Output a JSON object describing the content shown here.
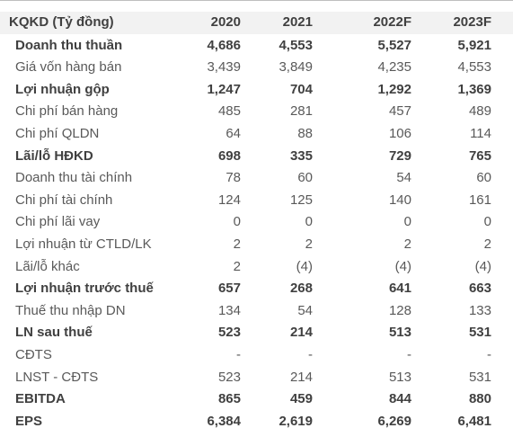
{
  "header": {
    "label": "KQKD (Tỷ đồng)",
    "years": [
      "2020",
      "2021",
      "2022F",
      "2023F"
    ]
  },
  "rows": [
    {
      "label": "Doanh thu thuần",
      "bold": true,
      "values": [
        "4,686",
        "4,553",
        "5,527",
        "5,921"
      ]
    },
    {
      "label": "Giá vốn hàng bán",
      "bold": false,
      "values": [
        "3,439",
        "3,849",
        "4,235",
        "4,553"
      ]
    },
    {
      "label": "Lợi nhuận gộp",
      "bold": true,
      "values": [
        "1,247",
        "704",
        "1,292",
        "1,369"
      ]
    },
    {
      "label": "Chi phí bán hàng",
      "bold": false,
      "values": [
        "485",
        "281",
        "457",
        "489"
      ]
    },
    {
      "label": "Chi phí QLDN",
      "bold": false,
      "values": [
        "64",
        "88",
        "106",
        "114"
      ]
    },
    {
      "label": "Lãi/lỗ HĐKD",
      "bold": true,
      "values": [
        "698",
        "335",
        "729",
        "765"
      ]
    },
    {
      "label": "Doanh thu tài chính",
      "bold": false,
      "values": [
        "78",
        "60",
        "54",
        "60"
      ]
    },
    {
      "label": "Chi phí tài chính",
      "bold": false,
      "values": [
        "124",
        "125",
        "140",
        "161"
      ]
    },
    {
      "label": "Chi phí lãi vay",
      "bold": false,
      "values": [
        "0",
        "0",
        "0",
        "0"
      ]
    },
    {
      "label": "Lợi nhuận từ CTLD/LK",
      "bold": false,
      "values": [
        "2",
        "2",
        "2",
        "2"
      ]
    },
    {
      "label": "Lãi/lỗ khác",
      "bold": false,
      "values": [
        "2",
        "(4)",
        "(4)",
        "(4)"
      ]
    },
    {
      "label": "Lợi nhuận trước thuế",
      "bold": true,
      "values": [
        "657",
        "268",
        "641",
        "663"
      ]
    },
    {
      "label": "Thuế thu nhập DN",
      "bold": false,
      "values": [
        "134",
        "54",
        "128",
        "133"
      ]
    },
    {
      "label": "LN sau thuế",
      "bold": true,
      "values": [
        "523",
        "214",
        "513",
        "531"
      ]
    },
    {
      "label": "CĐTS",
      "bold": false,
      "values": [
        "-",
        "-",
        "-",
        "-"
      ]
    },
    {
      "label": "LNST - CĐTS",
      "bold": false,
      "values": [
        "523",
        "214",
        "513",
        "531"
      ]
    },
    {
      "label": "EBITDA",
      "bold": true,
      "values": [
        "865",
        "459",
        "844",
        "880"
      ]
    },
    {
      "label": "EPS",
      "bold": true,
      "values": [
        "6,384",
        "2,619",
        "6,269",
        "6,481"
      ]
    }
  ]
}
